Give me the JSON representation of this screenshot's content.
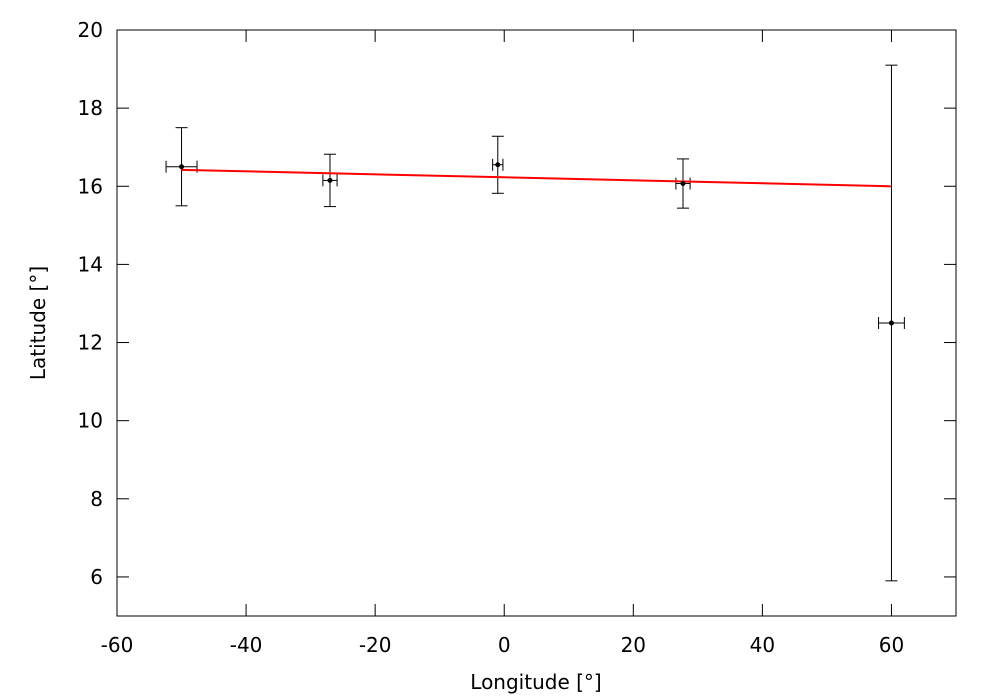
{
  "chart_data": {
    "type": "scatter",
    "xlabel": "Longitude [°]",
    "ylabel": "Latitude [°]",
    "xlim": [
      -60,
      70
    ],
    "ylim": [
      5,
      20
    ],
    "xticks": [
      -60,
      -40,
      -20,
      0,
      20,
      40,
      60
    ],
    "yticks": [
      6,
      8,
      10,
      12,
      14,
      16,
      18,
      20
    ],
    "grid": false,
    "legend": "none",
    "points": [
      {
        "x": -50.0,
        "y": 16.5,
        "xerr": 2.4,
        "yerr": 1.0
      },
      {
        "x": -27.0,
        "y": 16.15,
        "xerr": 1.1,
        "yerr": 0.67
      },
      {
        "x": -1.0,
        "y": 16.55,
        "xerr": 0.8,
        "yerr": 0.73
      },
      {
        "x": 27.7,
        "y": 16.07,
        "xerr": 1.1,
        "yerr": 0.63
      },
      {
        "x": 60.0,
        "y": 12.5,
        "xerr": 2.0,
        "yerr": 6.6
      }
    ],
    "fit_line": {
      "x": [
        -50,
        60
      ],
      "y": [
        16.42,
        16.0
      ],
      "color": "#ff0000"
    },
    "colors": {
      "points": "#000000",
      "fit": "#ff0000"
    }
  }
}
